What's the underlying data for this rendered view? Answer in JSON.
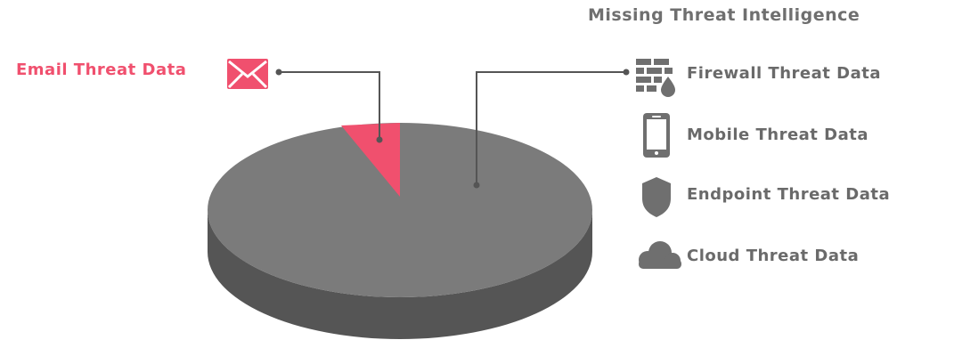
{
  "title": "Missing Threat Intelligence",
  "email_label": "Email Threat Data",
  "items": [
    {
      "label": "Firewall Threat Data",
      "icon": "firewall-icon"
    },
    {
      "label": "Mobile Threat Data",
      "icon": "mobile-icon"
    },
    {
      "label": "Endpoint  Threat Data",
      "icon": "shield-icon"
    },
    {
      "label": "Cloud Threat Data",
      "icon": "cloud-icon"
    }
  ],
  "colors": {
    "accent": "#f0506e",
    "pie_top": "#7b7b7b",
    "pie_side": "#555555",
    "icon": "#6f6f6f",
    "text": "#6a6a6a"
  }
}
